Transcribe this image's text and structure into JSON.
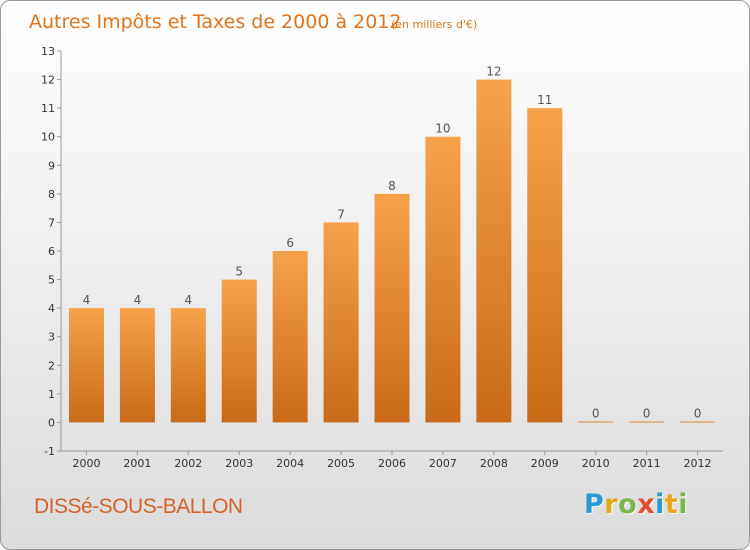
{
  "chart_data": {
    "type": "bar",
    "title": "Autres Impôts et Taxes de 2000 à 2012",
    "subtitle": "(en milliers d'€)",
    "categories": [
      "2000",
      "2001",
      "2002",
      "2003",
      "2004",
      "2005",
      "2006",
      "2007",
      "2008",
      "2009",
      "2010",
      "2011",
      "2012"
    ],
    "values": [
      4,
      4,
      4,
      5,
      6,
      7,
      8,
      10,
      12,
      11,
      0,
      0,
      0
    ],
    "value_labels": [
      "4",
      "4",
      "4",
      "5",
      "6",
      "7",
      "8",
      "10",
      "12",
      "11",
      "0",
      "0",
      "0"
    ],
    "ylim": [
      -1,
      13
    ],
    "yticks": [
      "-1",
      "0",
      "1",
      "2",
      "3",
      "4",
      "5",
      "6",
      "7",
      "8",
      "9",
      "10",
      "11",
      "12",
      "13"
    ],
    "grid": false,
    "bar_color": "#f0953a",
    "xlabel": "",
    "ylabel": ""
  },
  "footer": {
    "commune": "DISSé-SOUS-BALLON",
    "brand_letters": [
      {
        "ch": "P",
        "color": "#2a9ad6"
      },
      {
        "ch": "r",
        "color": "#e8a619"
      },
      {
        "ch": "o",
        "color": "#7ab648"
      },
      {
        "ch": "x",
        "color": "#e0502b"
      },
      {
        "ch": "i",
        "color": "#2a9ad6"
      },
      {
        "ch": "t",
        "color": "#e8a619"
      },
      {
        "ch": "i",
        "color": "#7ab648"
      }
    ]
  }
}
